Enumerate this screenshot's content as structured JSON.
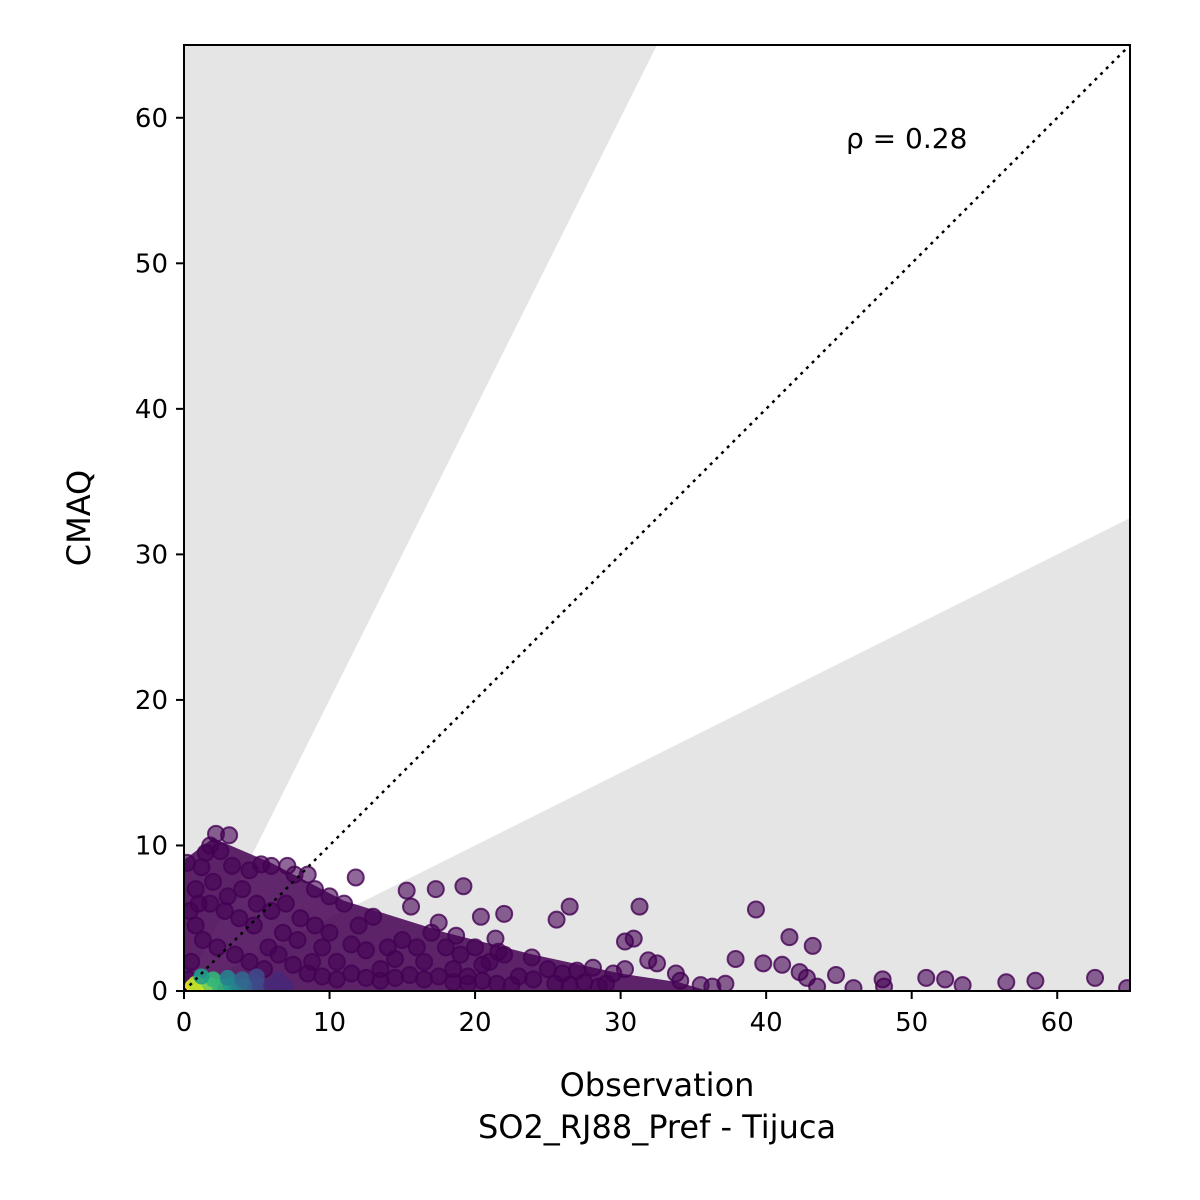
{
  "chart_data": {
    "type": "scatter",
    "xlabel": "Observation",
    "xlabel_sub": "SO2_RJ88_Pref - Tijuca",
    "ylabel": "CMAQ",
    "xlim": [
      0,
      65
    ],
    "ylim": [
      0,
      65
    ],
    "x_ticks": [
      0,
      10,
      20,
      30,
      40,
      50,
      60
    ],
    "y_ticks": [
      0,
      10,
      20,
      30,
      40,
      50,
      60
    ],
    "grid": false,
    "annotation": "ρ = 0.28",
    "reference_line": {
      "style": "dotted",
      "slope": 1
    },
    "shaded_bounds": {
      "upper_slope": 2,
      "lower_slope": 0.5
    },
    "colors": {
      "shade": "#e5e5e5",
      "point_low_density": "#440154",
      "point_mid_density": "#21918c",
      "point_high_density": "#fde725"
    },
    "points": [
      [
        0.3,
        0.8
      ],
      [
        0.5,
        2.0
      ],
      [
        0.8,
        4.5
      ],
      [
        1.0,
        6.0
      ],
      [
        1.2,
        8.5
      ],
      [
        1.5,
        9.5
      ],
      [
        1.8,
        10.0
      ],
      [
        2.2,
        10.8
      ],
      [
        3.1,
        10.7
      ],
      [
        2.5,
        9.6
      ],
      [
        3.3,
        8.6
      ],
      [
        4.5,
        8.3
      ],
      [
        5.3,
        8.7
      ],
      [
        6.0,
        8.6
      ],
      [
        7.1,
        8.6
      ],
      [
        7.6,
        8.0
      ],
      [
        8.5,
        8.0
      ],
      [
        9.0,
        7.0
      ],
      [
        10.0,
        6.5
      ],
      [
        11.0,
        6.0
      ],
      [
        2.0,
        7.5
      ],
      [
        3.0,
        6.5
      ],
      [
        4.0,
        7.0
      ],
      [
        5.0,
        6.0
      ],
      [
        6.0,
        5.5
      ],
      [
        7.0,
        6.0
      ],
      [
        8.0,
        5.0
      ],
      [
        9.0,
        4.5
      ],
      [
        10.0,
        4.0
      ],
      [
        12.0,
        4.5
      ],
      [
        13.0,
        5.1
      ],
      [
        14.0,
        3.0
      ],
      [
        15.0,
        3.5
      ],
      [
        16.0,
        3.0
      ],
      [
        17.0,
        4.0
      ],
      [
        18.0,
        3.0
      ],
      [
        19.0,
        2.5
      ],
      [
        20.0,
        3.0
      ],
      [
        21.0,
        2.0
      ],
      [
        22.0,
        2.5
      ],
      [
        11.8,
        7.8
      ],
      [
        15.3,
        6.9
      ],
      [
        15.6,
        5.8
      ],
      [
        17.3,
        7.0
      ],
      [
        19.2,
        7.2
      ],
      [
        17.5,
        4.7
      ],
      [
        18.7,
        3.8
      ],
      [
        20.4,
        5.1
      ],
      [
        22.0,
        5.3
      ],
      [
        21.4,
        3.6
      ],
      [
        21.6,
        2.7
      ],
      [
        23.9,
        2.3
      ],
      [
        25.6,
        4.9
      ],
      [
        26.5,
        5.8
      ],
      [
        25.0,
        1.5
      ],
      [
        26.0,
        1.2
      ],
      [
        27.0,
        1.4
      ],
      [
        28.1,
        1.6
      ],
      [
        29.5,
        1.2
      ],
      [
        30.3,
        1.5
      ],
      [
        30.3,
        3.4
      ],
      [
        30.9,
        3.6
      ],
      [
        31.3,
        5.8
      ],
      [
        31.9,
        2.1
      ],
      [
        32.5,
        1.9
      ],
      [
        33.8,
        1.2
      ],
      [
        34.1,
        0.7
      ],
      [
        35.5,
        0.4
      ],
      [
        36.3,
        0.3
      ],
      [
        37.2,
        0.5
      ],
      [
        37.9,
        2.2
      ],
      [
        39.3,
        5.6
      ],
      [
        39.8,
        1.9
      ],
      [
        41.1,
        1.8
      ],
      [
        41.6,
        3.7
      ],
      [
        42.3,
        1.3
      ],
      [
        42.8,
        0.9
      ],
      [
        43.2,
        3.1
      ],
      [
        43.5,
        0.3
      ],
      [
        44.8,
        1.1
      ],
      [
        48.0,
        0.8
      ],
      [
        48.1,
        0.3
      ],
      [
        51.0,
        0.9
      ],
      [
        52.3,
        0.8
      ],
      [
        53.5,
        0.4
      ],
      [
        56.5,
        0.6
      ],
      [
        58.5,
        0.7
      ],
      [
        62.6,
        0.9
      ],
      [
        64.8,
        0.2
      ],
      [
        46.0,
        0.2
      ],
      [
        24.0,
        0.8
      ],
      [
        25.5,
        0.5
      ],
      [
        27.5,
        0.6
      ],
      [
        28.5,
        0.3
      ],
      [
        23.0,
        1.0
      ],
      [
        22.5,
        0.4
      ],
      [
        20.5,
        1.8
      ],
      [
        19.5,
        1.0
      ],
      [
        18.5,
        1.5
      ],
      [
        16.5,
        2.0
      ],
      [
        14.5,
        2.2
      ],
      [
        13.5,
        1.5
      ],
      [
        12.5,
        2.8
      ],
      [
        11.5,
        3.2
      ],
      [
        10.5,
        2.0
      ],
      [
        9.5,
        3.0
      ],
      [
        8.8,
        2.0
      ],
      [
        7.8,
        3.5
      ],
      [
        6.8,
        4.0
      ],
      [
        5.8,
        3.0
      ],
      [
        4.8,
        4.5
      ],
      [
        3.8,
        5.0
      ],
      [
        2.8,
        5.5
      ],
      [
        1.8,
        6.0
      ],
      [
        0.8,
        7.0
      ],
      [
        0.4,
        5.5
      ],
      [
        0.2,
        8.8
      ],
      [
        1.3,
        3.5
      ],
      [
        2.3,
        3.0
      ],
      [
        3.5,
        2.5
      ],
      [
        4.5,
        2.0
      ],
      [
        5.5,
        1.5
      ],
      [
        6.5,
        2.5
      ],
      [
        7.5,
        1.8
      ],
      [
        8.5,
        1.2
      ],
      [
        9.5,
        1.0
      ],
      [
        10.5,
        0.8
      ],
      [
        11.5,
        1.2
      ],
      [
        12.5,
        0.9
      ],
      [
        13.5,
        0.7
      ],
      [
        14.5,
        0.9
      ],
      [
        15.5,
        1.1
      ],
      [
        16.5,
        0.8
      ],
      [
        17.5,
        1.0
      ],
      [
        18.5,
        0.6
      ],
      [
        19.5,
        0.5
      ],
      [
        20.5,
        0.7
      ],
      [
        21.5,
        0.5
      ],
      [
        26.5,
        0.4
      ],
      [
        29.0,
        0.5
      ]
    ],
    "dense_points": [
      [
        0.6,
        0.3,
        "#fde725"
      ],
      [
        1.0,
        0.4,
        "#fde725"
      ],
      [
        1.4,
        0.3,
        "#fde725"
      ],
      [
        0.8,
        0.5,
        "#b5de2b"
      ],
      [
        1.8,
        0.4,
        "#6ece58"
      ],
      [
        2.5,
        0.3,
        "#35b779"
      ],
      [
        3.2,
        0.4,
        "#1f9e89"
      ],
      [
        3.8,
        0.3,
        "#26828e"
      ],
      [
        4.5,
        0.4,
        "#31688e"
      ],
      [
        5.2,
        0.3,
        "#3e4989"
      ],
      [
        6.0,
        0.4,
        "#482878"
      ],
      [
        7.0,
        0.3,
        "#482878"
      ],
      [
        2.0,
        0.8,
        "#35b779"
      ],
      [
        3.0,
        0.9,
        "#26828e"
      ],
      [
        4.0,
        0.8,
        "#31688e"
      ],
      [
        1.2,
        1.0,
        "#1f9e89"
      ],
      [
        5.0,
        1.0,
        "#3e4989"
      ],
      [
        6.5,
        0.8,
        "#482878"
      ]
    ]
  }
}
